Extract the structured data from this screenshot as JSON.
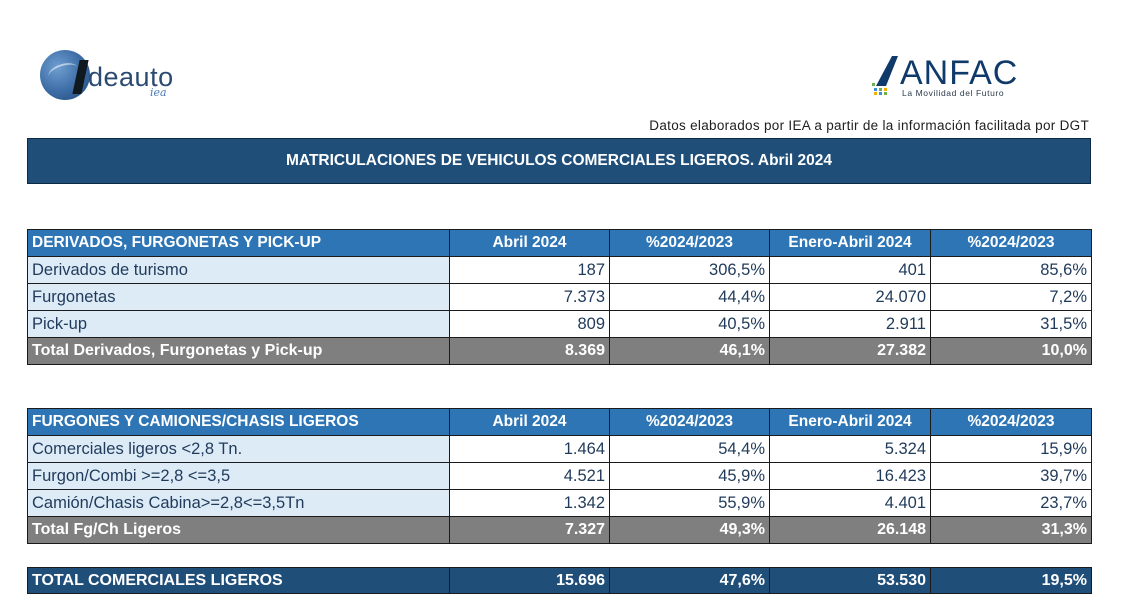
{
  "logos": {
    "ideauto": {
      "word": "deauto",
      "sub": "iea"
    },
    "anfac": {
      "word": "ANFAC",
      "tag": "La Movilidad del Futuro"
    }
  },
  "source_note": "Datos elaborados por IEA a partir de la información facilitada por DGT",
  "title": "MATRICULACIONES DE VEHICULOS COMERCIALES LIGEROS. Abril 2024",
  "table1": {
    "headers": [
      "DERIVADOS, FURGONETAS Y PICK-UP",
      "Abril 2024",
      "%2024/2023",
      "Enero-Abril 2024",
      "%2024/2023"
    ],
    "rows": [
      [
        "Derivados de turismo",
        "187",
        "306,5%",
        "401",
        "85,6%"
      ],
      [
        "Furgonetas",
        "7.373",
        "44,4%",
        "24.070",
        "7,2%"
      ],
      [
        "Pick-up",
        "809",
        "40,5%",
        "2.911",
        "31,5%"
      ]
    ],
    "total": [
      "Total Derivados, Furgonetas y Pick-up",
      "8.369",
      "46,1%",
      "27.382",
      "10,0%"
    ]
  },
  "table2": {
    "headers": [
      "FURGONES Y CAMIONES/CHASIS LIGEROS",
      "Abril 2024",
      "%2024/2023",
      "Enero-Abril 2024",
      "%2024/2023"
    ],
    "rows": [
      [
        "Comerciales ligeros <2,8 Tn.",
        "1.464",
        "54,4%",
        "5.324",
        "15,9%"
      ],
      [
        "Furgon/Combi >=2,8 <=3,5",
        "4.521",
        "45,9%",
        "16.423",
        "39,7%"
      ],
      [
        "Camión/Chasis Cabina>=2,8<=3,5Tn",
        "1.342",
        "55,9%",
        "4.401",
        "23,7%"
      ]
    ],
    "total": [
      "Total Fg/Ch Ligeros",
      "7.327",
      "49,3%",
      "26.148",
      "31,3%"
    ]
  },
  "grand_total": [
    "TOTAL COMERCIALES LIGEROS",
    "15.696",
    "47,6%",
    "53.530",
    "19,5%"
  ],
  "colors": {
    "header_blue": "#2e75b6",
    "dark_blue": "#1f4e79",
    "label_bg": "#ddebf7",
    "total_gray": "#7f7f7f"
  }
}
